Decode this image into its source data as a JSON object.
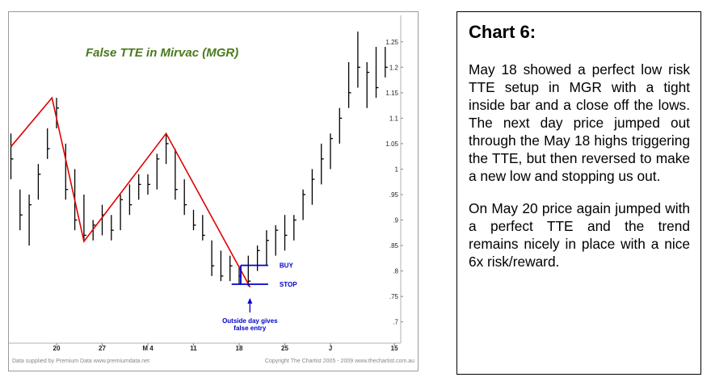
{
  "chart_data": {
    "type": "ohlc",
    "title": "False TTE in Mirvac (MGR)",
    "y_ticks": [
      1.25,
      1.2,
      1.15,
      1.1,
      1.05,
      1,
      0.95,
      0.9,
      0.85,
      0.8,
      0.75,
      0.7
    ],
    "y_tick_labels": [
      "1.25",
      "1.2",
      "1.15",
      "1.1",
      "1.05",
      "1",
      ".95",
      ".9",
      ".85",
      ".8",
      ".75",
      ".7"
    ],
    "ylim": [
      0.682,
      1.275
    ],
    "x_tick_labels": [
      {
        "label": "20",
        "index": 5
      },
      {
        "label": "27",
        "index": 10
      },
      {
        "label": "M 4",
        "index": 15
      },
      {
        "label": "11",
        "index": 20
      },
      {
        "label": "18",
        "index": 25
      },
      {
        "label": "25",
        "index": 30
      },
      {
        "label": "J",
        "index": 35
      },
      {
        "label": "15",
        "index": 42
      }
    ],
    "bars": [
      {
        "h": 1.07,
        "l": 0.98,
        "c": 1.02
      },
      {
        "h": 0.96,
        "l": 0.88,
        "c": 0.91
      },
      {
        "h": 0.95,
        "l": 0.85,
        "c": 0.93
      },
      {
        "h": 1.01,
        "l": 0.94,
        "c": 0.99
      },
      {
        "h": 1.08,
        "l": 1.02,
        "c": 1.04
      },
      {
        "h": 1.14,
        "l": 1.08,
        "c": 1.12
      },
      {
        "h": 1.05,
        "l": 0.94,
        "c": 0.96
      },
      {
        "h": 1.0,
        "l": 0.88,
        "c": 0.9
      },
      {
        "h": 0.95,
        "l": 0.86,
        "c": 0.87
      },
      {
        "h": 0.9,
        "l": 0.86,
        "c": 0.89
      },
      {
        "h": 0.93,
        "l": 0.87,
        "c": 0.91
      },
      {
        "h": 0.91,
        "l": 0.86,
        "c": 0.88
      },
      {
        "h": 0.95,
        "l": 0.88,
        "c": 0.94
      },
      {
        "h": 0.97,
        "l": 0.91,
        "c": 0.93
      },
      {
        "h": 0.99,
        "l": 0.94,
        "c": 0.97
      },
      {
        "h": 0.99,
        "l": 0.95,
        "c": 0.97
      },
      {
        "h": 1.03,
        "l": 0.96,
        "c": 1.02
      },
      {
        "h": 1.07,
        "l": 1.01,
        "c": 1.05
      },
      {
        "h": 1.04,
        "l": 0.94,
        "c": 0.96
      },
      {
        "h": 0.98,
        "l": 0.91,
        "c": 0.93
      },
      {
        "h": 0.92,
        "l": 0.88,
        "c": 0.89
      },
      {
        "h": 0.91,
        "l": 0.86,
        "c": 0.87
      },
      {
        "h": 0.86,
        "l": 0.79,
        "c": 0.81
      },
      {
        "h": 0.84,
        "l": 0.78,
        "c": 0.79
      },
      {
        "h": 0.83,
        "l": 0.78,
        "c": 0.81
      },
      {
        "h": 0.81,
        "l": 0.775,
        "c": 0.79
      },
      {
        "h": 0.83,
        "l": 0.77,
        "c": 0.78
      },
      {
        "h": 0.85,
        "l": 0.8,
        "c": 0.84
      },
      {
        "h": 0.88,
        "l": 0.81,
        "c": 0.86
      },
      {
        "h": 0.89,
        "l": 0.83,
        "c": 0.88
      },
      {
        "h": 0.91,
        "l": 0.84,
        "c": 0.87
      },
      {
        "h": 0.91,
        "l": 0.86,
        "c": 0.9
      },
      {
        "h": 0.96,
        "l": 0.9,
        "c": 0.95
      },
      {
        "h": 1.0,
        "l": 0.93,
        "c": 0.98
      },
      {
        "h": 1.05,
        "l": 0.97,
        "c": 1.02
      },
      {
        "h": 1.07,
        "l": 1.0,
        "c": 1.06
      },
      {
        "h": 1.12,
        "l": 1.05,
        "c": 1.1
      },
      {
        "h": 1.21,
        "l": 1.12,
        "c": 1.15
      },
      {
        "h": 1.27,
        "l": 1.16,
        "c": 1.2
      },
      {
        "h": 1.21,
        "l": 1.12,
        "c": 1.19
      },
      {
        "h": 1.24,
        "l": 1.14,
        "c": 1.16
      },
      {
        "h": 1.24,
        "l": 1.18,
        "c": 1.2
      }
    ],
    "trend_line": [
      {
        "index": 0,
        "value": 1.044
      },
      {
        "index": 4.5,
        "value": 1.14
      },
      {
        "index": 8,
        "value": 0.858
      },
      {
        "index": 17,
        "value": 1.07
      },
      {
        "index": 26.2,
        "value": 0.768
      }
    ],
    "levels": [
      {
        "label": "BUY",
        "value": 0.811,
        "from_index": 25,
        "to_index": 28
      },
      {
        "label": "STOP",
        "value": 0.774,
        "from_index": 24,
        "to_index": 28
      }
    ],
    "annotation": {
      "line1": "Outside day gives",
      "line2": "false entry",
      "index": 26
    },
    "footer_left": "Data supplied by Premium Data www.premiumdata.net",
    "footer_right": "Copyright The Chartist 2005 - 2009  www.thechartist.com.au",
    "colors": {
      "bars": "#000000",
      "trend": "#e00000",
      "levels": "#0000cc",
      "title": "#4a7a1c",
      "footer": "#888888"
    }
  },
  "panel": {
    "heading": "Chart 6:",
    "para1": "May 18 showed a perfect low risk TTE setup in MGR with a tight inside bar and a close off the lows. The next day price jumped out through the May 18 highs triggering the TTE, but then reversed to make a new low and stopping us out.",
    "para2": "On May 20 price again jumped with a perfect TTE and the trend remains nicely in place with a nice 6x risk/reward."
  }
}
